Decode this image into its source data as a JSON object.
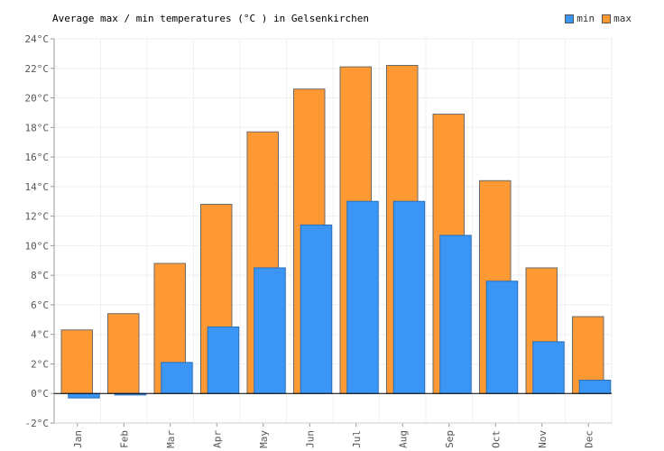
{
  "chart_data": {
    "type": "bar",
    "title": "Average max / min temperatures (°C ) in Gelsenkirchen",
    "xlabel": "",
    "ylabel": "",
    "categories": [
      "Jan",
      "Feb",
      "Mar",
      "Apr",
      "May",
      "Jun",
      "Jul",
      "Aug",
      "Sep",
      "Oct",
      "Nov",
      "Dec"
    ],
    "series": [
      {
        "name": "min",
        "color": "#3a95f5",
        "values": [
          -0.3,
          -0.1,
          2.1,
          4.5,
          8.5,
          11.4,
          13.0,
          13.0,
          10.7,
          7.6,
          3.5,
          0.9
        ]
      },
      {
        "name": "max",
        "color": "#ff9933",
        "values": [
          4.3,
          5.4,
          8.8,
          12.8,
          17.7,
          20.6,
          22.1,
          22.2,
          18.9,
          14.4,
          8.5,
          5.2
        ]
      }
    ],
    "ylim": [
      -2,
      24
    ],
    "yticks": [
      "-2°C",
      "0°C",
      "2°C",
      "4°C",
      "6°C",
      "8°C",
      "10°C",
      "12°C",
      "14°C",
      "16°C",
      "18°C",
      "20°C",
      "22°C",
      "24°C"
    ],
    "grid": true,
    "legend": "top-right"
  }
}
